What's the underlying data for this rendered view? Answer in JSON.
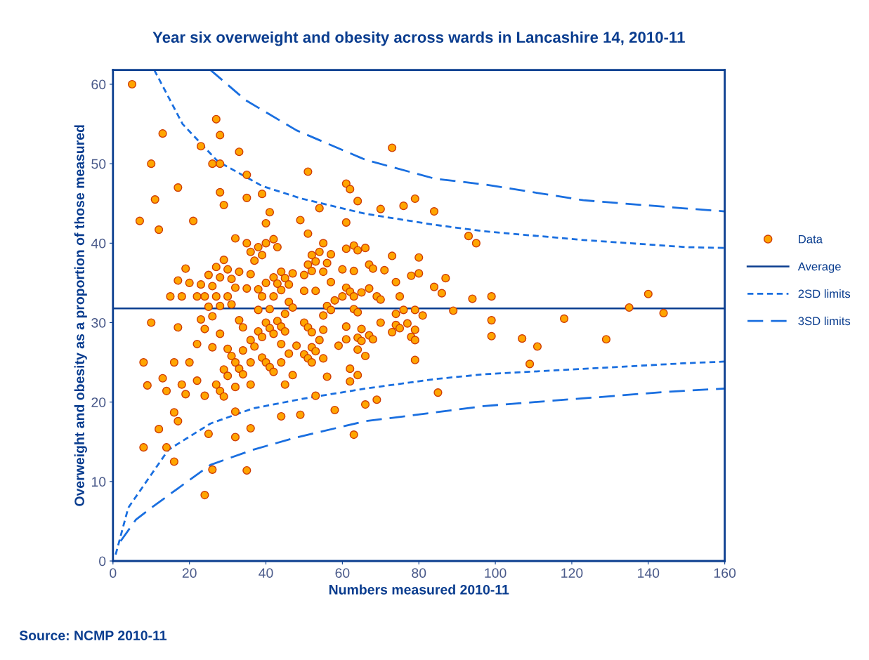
{
  "chart_data": {
    "type": "scatter",
    "title": "Year six overweight and obesity across wards in Lancashire 14, 2010-11",
    "xlabel": "Numbers measured 2010-11",
    "ylabel": "Overweight and obesity as a proportion of those measured",
    "annotations": [
      "Source: NCMP 2010-11"
    ],
    "xlim": [
      0,
      160
    ],
    "ylim": [
      0,
      61.8
    ],
    "xticks": [
      0,
      20,
      40,
      60,
      80,
      100,
      120,
      140,
      160
    ],
    "yticks": [
      0,
      10,
      20,
      30,
      40,
      50,
      60
    ],
    "grid": false,
    "legend": "right",
    "series": [
      {
        "name": "Data",
        "marker": "circle",
        "color": "#ffa500",
        "x": [
          5,
          7,
          8,
          8,
          9,
          10,
          10,
          11,
          12,
          12,
          13,
          13,
          14,
          14,
          15,
          16,
          16,
          16,
          17,
          17,
          17,
          17,
          18,
          18,
          19,
          19,
          20,
          20,
          21,
          22,
          22,
          22,
          23,
          23,
          23,
          24,
          24,
          24,
          24,
          25,
          25,
          25,
          26,
          26,
          26,
          26,
          26,
          27,
          27,
          27,
          27,
          28,
          28,
          28,
          28,
          28,
          28,
          28,
          29,
          29,
          29,
          29,
          30,
          30,
          30,
          30,
          31,
          31,
          31,
          32,
          32,
          32,
          32,
          32,
          32,
          33,
          33,
          33,
          33,
          34,
          34,
          34,
          35,
          35,
          35,
          35,
          35,
          36,
          36,
          36,
          36,
          36,
          36,
          37,
          37,
          38,
          38,
          38,
          38,
          39,
          39,
          39,
          39,
          39,
          40,
          40,
          40,
          40,
          40,
          41,
          41,
          41,
          41,
          42,
          42,
          42,
          42,
          42,
          43,
          43,
          43,
          44,
          44,
          44,
          44,
          44,
          44,
          45,
          45,
          45,
          45,
          46,
          46,
          46,
          47,
          47,
          47,
          48,
          49,
          49,
          50,
          50,
          50,
          50,
          51,
          51,
          51,
          51,
          51,
          52,
          52,
          52,
          52,
          52,
          53,
          53,
          53,
          53,
          54,
          54,
          54,
          55,
          55,
          55,
          55,
          55,
          56,
          56,
          56,
          57,
          57,
          57,
          58,
          58,
          59,
          60,
          60,
          61,
          61,
          61,
          61,
          61,
          61,
          62,
          62,
          62,
          62,
          63,
          63,
          63,
          63,
          63,
          64,
          64,
          64,
          64,
          64,
          64,
          65,
          65,
          65,
          66,
          66,
          66,
          67,
          67,
          67,
          68,
          68,
          69,
          69,
          70,
          70,
          70,
          71,
          73,
          73,
          73,
          74,
          74,
          74,
          75,
          75,
          76,
          76,
          77,
          78,
          78,
          79,
          79,
          79,
          79,
          79,
          80,
          80,
          81,
          84,
          84,
          85,
          86,
          87,
          89,
          93,
          94,
          95,
          99,
          99,
          99,
          107,
          109,
          111,
          118,
          129,
          135,
          140,
          144
        ],
        "values": [
          60,
          42.8,
          14.3,
          25,
          22.1,
          30,
          50,
          45.5,
          41.7,
          16.6,
          53.8,
          23,
          21.4,
          14.3,
          33.3,
          25,
          18.7,
          12.5,
          47,
          29.4,
          17.6,
          35.3,
          22.2,
          33.3,
          36.8,
          21,
          25,
          35,
          42.8,
          33.3,
          27.3,
          22.7,
          52.2,
          34.8,
          30.4,
          8.3,
          20.8,
          29.2,
          33.3,
          36,
          32,
          16,
          11.5,
          50,
          34.6,
          26.9,
          30.8,
          55.6,
          37,
          33.3,
          22.2,
          53.6,
          50,
          46.4,
          35.7,
          32.1,
          28.6,
          21.4,
          44.8,
          37.9,
          24.1,
          20.7,
          36.7,
          33.3,
          26.7,
          23.3,
          35.5,
          32.3,
          25.8,
          40.6,
          34.4,
          25,
          21.9,
          18.8,
          15.6,
          51.5,
          36.4,
          30.3,
          24.2,
          29.4,
          26.5,
          23.5,
          48.6,
          45.7,
          40,
          34.3,
          11.4,
          38.9,
          36.1,
          27.8,
          25,
          22.2,
          16.7,
          37.8,
          27,
          39.5,
          34.2,
          31.6,
          28.9,
          46.2,
          38.5,
          33.3,
          28.2,
          25.6,
          42.5,
          40,
          35,
          30,
          25,
          43.9,
          31.7,
          29.3,
          24.4,
          40.5,
          35.7,
          33.3,
          28.6,
          23.8,
          39.5,
          34.9,
          30.2,
          36.4,
          34.1,
          29.5,
          27.3,
          25,
          18.2,
          35.6,
          31.1,
          28.9,
          22.2,
          34.8,
          32.6,
          26.1,
          36.2,
          31.9,
          23.4,
          27.1,
          42.9,
          18.4,
          36,
          34,
          30,
          26,
          49,
          41.2,
          37.3,
          29.4,
          25.5,
          38.5,
          36.5,
          28.8,
          26.9,
          25,
          37.7,
          34,
          26.4,
          20.8,
          44.4,
          38.9,
          27.8,
          40,
          36.4,
          30.9,
          29.1,
          25.5,
          37.5,
          32.1,
          23.2,
          38.6,
          35.1,
          31.6,
          32.8,
          19,
          27.1,
          36.7,
          33.3,
          47.5,
          42.6,
          39.3,
          34.4,
          29.5,
          27.9,
          46.8,
          33.9,
          24.2,
          22.6,
          39.7,
          36.5,
          33.3,
          31.7,
          15.9,
          45.3,
          39.1,
          31.3,
          28.1,
          26.6,
          23.4,
          33.8,
          29.2,
          27.7,
          39.4,
          25.8,
          19.7,
          37.3,
          34.3,
          28.4,
          36.8,
          27.9,
          33.3,
          20.3,
          44.3,
          32.9,
          30,
          36.6,
          52,
          38.4,
          28.8,
          35.1,
          29.7,
          31.1,
          33.3,
          29.3,
          44.7,
          31.6,
          29.9,
          35.9,
          28.2,
          45.6,
          31.6,
          29.1,
          27.8,
          25.3,
          36.2,
          38.2,
          30.9,
          44,
          34.5,
          21.2,
          33.7,
          35.6,
          31.5,
          40.9,
          33,
          40,
          33.3,
          30.3,
          28.3,
          28,
          24.8,
          27,
          30.5,
          27.9,
          31.9,
          33.6,
          31.2
        ]
      },
      {
        "name": "Average",
        "type": "line",
        "line_style": "solid",
        "color": "#0a3d8f",
        "x": [
          0,
          160
        ],
        "values": [
          31.8,
          31.8
        ]
      },
      {
        "name": "2SD limits",
        "type": "line",
        "line_style": "dotted",
        "color": "#1a6fe0",
        "x": [
          10.8,
          18.2,
          27.4,
          39,
          49.4,
          66,
          84.3,
          97,
          123,
          150,
          160
        ],
        "values": [
          61.8,
          55,
          50.3,
          47.2,
          45.6,
          43.7,
          42.3,
          41.5,
          40.4,
          39.5,
          39.4
        ]
      },
      {
        "type": "line",
        "line_style": "dotted",
        "color": "#1a6fe0",
        "x": [
          0.7,
          4,
          14.5,
          25.5,
          36.6,
          49.4,
          66,
          84.3,
          97,
          150,
          160
        ],
        "values": [
          0.8,
          6.7,
          14,
          17.3,
          19.2,
          20.4,
          21.7,
          22.9,
          23.5,
          24.9,
          25.1
        ]
      },
      {
        "name": "3SD limits",
        "type": "line",
        "line_style": "dashed",
        "color": "#1a6fe0",
        "x": [
          25.5,
          34.7,
          48,
          66,
          84.3,
          97,
          123,
          149,
          160
        ],
        "values": [
          61.8,
          58,
          54.2,
          50.5,
          48.1,
          47.4,
          45.4,
          44.4,
          44
        ]
      },
      {
        "type": "line",
        "line_style": "dashed",
        "color": "#1a6fe0",
        "x": [
          2,
          6,
          10.3,
          25.5,
          36.6,
          47.6,
          66,
          84.3,
          97,
          145,
          160
        ],
        "values": [
          2.5,
          5.2,
          6.8,
          12.1,
          14,
          15.5,
          17.6,
          18.7,
          19.5,
          21.3,
          21.7
        ]
      }
    ]
  }
}
